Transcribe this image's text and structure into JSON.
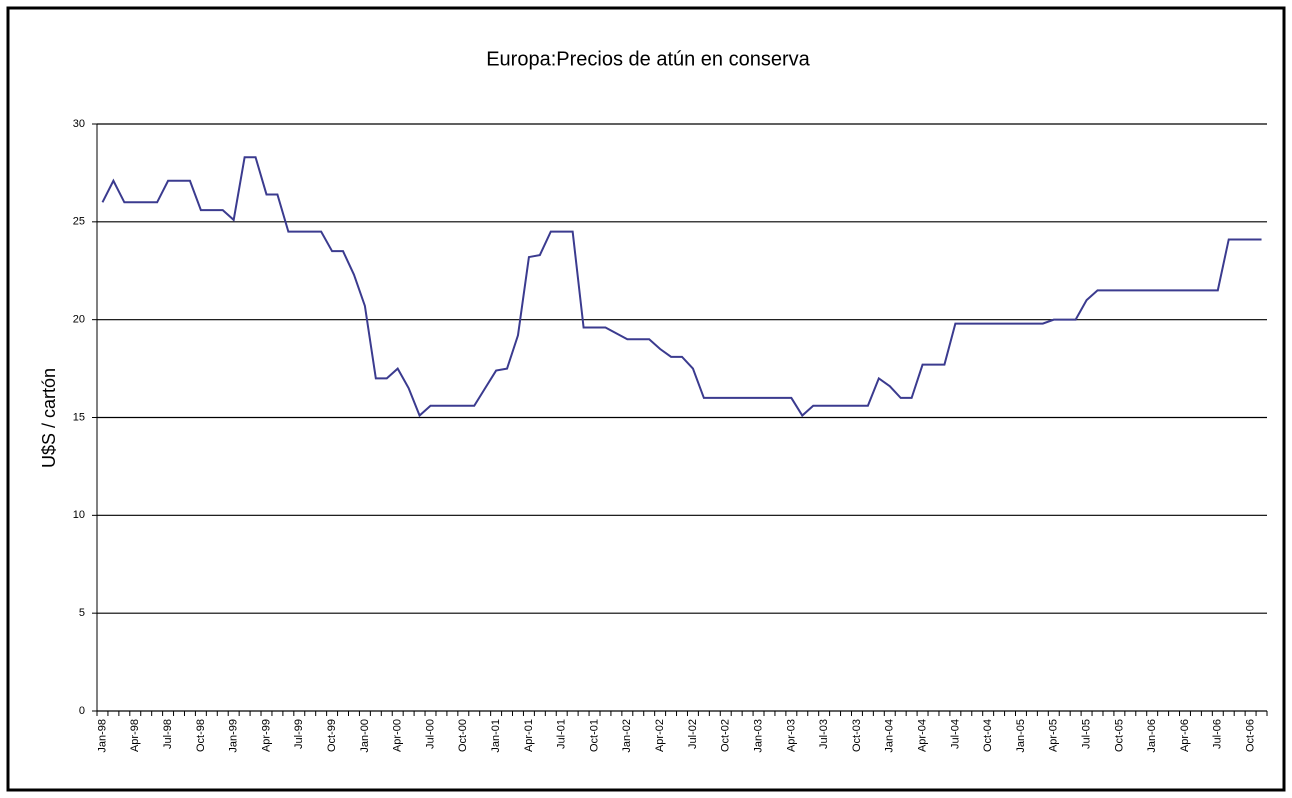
{
  "chart_data": {
    "type": "line",
    "title": "Europa:Precios de atún en conserva",
    "y_label": "U$S / cartón",
    "categories": [
      "Jan-98",
      null,
      null,
      "Apr-98",
      null,
      null,
      "Jul-98",
      null,
      null,
      "Oct-98",
      null,
      null,
      "Jan-99",
      null,
      null,
      "Apr-99",
      null,
      null,
      "Jul-99",
      null,
      null,
      "Oct-99",
      null,
      null,
      "Jan-00",
      null,
      null,
      "Apr-00",
      null,
      null,
      "Jul-00",
      null,
      null,
      "Oct-00",
      null,
      null,
      "Jan-01",
      null,
      null,
      "Apr-01",
      null,
      null,
      "Jul-01",
      null,
      null,
      "Oct-01",
      null,
      null,
      "Jan-02",
      null,
      null,
      "Apr-02",
      null,
      null,
      "Jul-02",
      null,
      null,
      "Oct-02",
      null,
      null,
      "Jan-03",
      null,
      null,
      "Apr-03",
      null,
      null,
      "Jul-03",
      null,
      null,
      "Oct-03",
      null,
      null,
      "Jan-04",
      null,
      null,
      "Apr-04",
      null,
      null,
      "Jul-04",
      null,
      null,
      "Oct-04",
      null,
      null,
      "Jan-05",
      null,
      null,
      "Apr-05",
      null,
      null,
      "Jul-05",
      null,
      null,
      "Oct-05",
      null,
      null,
      "Jan-06",
      null,
      null,
      "Apr-06",
      null,
      null,
      "Jul-06",
      null,
      null,
      "Oct-06",
      null
    ],
    "series": [
      {
        "color": "#3b3b8f",
        "values": [
          26,
          27.1,
          26,
          26,
          26,
          26,
          27.1,
          27.1,
          27.1,
          25.6,
          25.6,
          25.6,
          25.1,
          28.3,
          28.3,
          26.4,
          26.4,
          24.5,
          24.5,
          24.5,
          24.5,
          23.5,
          23.5,
          22.3,
          20.7,
          17,
          17,
          17.5,
          16.5,
          15.1,
          15.6,
          15.6,
          15.6,
          15.6,
          15.6,
          16.5,
          17.4,
          17.5,
          19.2,
          23.2,
          23.3,
          24.5,
          24.5,
          24.5,
          19.6,
          19.6,
          19.6,
          19.3,
          19,
          19,
          19,
          18.5,
          18.1,
          18.1,
          17.5,
          16,
          16,
          16,
          16,
          16,
          16,
          16,
          16,
          16,
          15.1,
          15.6,
          15.6,
          15.6,
          15.6,
          15.6,
          15.6,
          17,
          16.6,
          16,
          16,
          17.7,
          17.7,
          17.7,
          19.8,
          19.8,
          19.8,
          19.8,
          19.8,
          19.8,
          19.8,
          19.8,
          19.8,
          20,
          20,
          20,
          21,
          21.5,
          21.5,
          21.5,
          21.5,
          21.5,
          21.5,
          21.5,
          21.5,
          21.5,
          21.5,
          21.5,
          21.5,
          24.1,
          24.1,
          24.1,
          24.1
        ]
      }
    ],
    "ylim": [
      0,
      30
    ],
    "yticks": [
      0,
      5,
      10,
      15,
      20,
      25,
      30
    ],
    "grid": true
  }
}
